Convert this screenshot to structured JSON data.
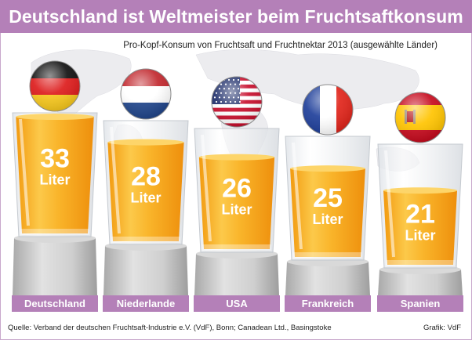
{
  "title": "Deutschland ist Weltmeister beim Fruchtsaftkonsum",
  "subtitle": "Pro-Kopf-Konsum von Fruchtsaft und Fruchtnektar 2013 (ausgewählte Länder)",
  "source": "Quelle: Verband der deutschen Fruchtsaft-Industrie e.V. (VdF), Bonn; Canadean Ltd., Basingstoke",
  "credit": "Grafik: VdF",
  "unit": "Liter",
  "colors": {
    "header": "#b480b8",
    "label_band": "#b480b8",
    "juice": "#f7a91c",
    "juice_light": "#fcc94a",
    "pedestal": "#c7c7c7"
  },
  "chart_data": {
    "type": "bar",
    "categories": [
      "Deutschland",
      "Niederlande",
      "USA",
      "Frankreich",
      "Spanien"
    ],
    "values": [
      33,
      28,
      26,
      25,
      21
    ],
    "value_unit": "Liter",
    "flags": [
      "germany-flag",
      "netherlands-flag",
      "usa-flag",
      "france-flag",
      "spain-flag"
    ]
  }
}
